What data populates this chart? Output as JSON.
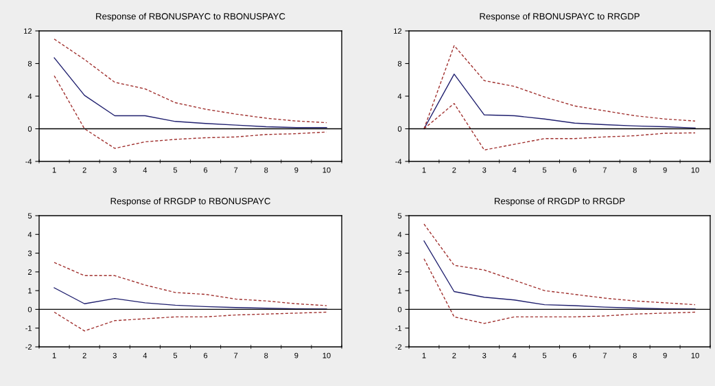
{
  "chart_data": [
    {
      "type": "line",
      "title": "Response of RBONUSPAYC to RBONUSPAYC",
      "categories": [
        "1",
        "2",
        "3",
        "4",
        "5",
        "6",
        "7",
        "8",
        "9",
        "10"
      ],
      "ylim": [
        -4,
        12
      ],
      "yticks": [
        -4,
        0,
        4,
        8,
        12
      ],
      "grid": false,
      "legend": false,
      "ref_lines": [
        {
          "axis": "y",
          "value": 0,
          "color": "#000000"
        }
      ],
      "series": [
        {
          "color": "#1f1f6e",
          "line_style": "solid",
          "values": [
            8.7,
            4.1,
            1.6,
            1.6,
            0.9,
            0.65,
            0.45,
            0.25,
            0.15,
            0.15
          ]
        },
        {
          "color": "#a0302e",
          "line_style": "dashed",
          "values": [
            11,
            8.5,
            5.7,
            4.9,
            3.2,
            2.4,
            1.8,
            1.3,
            0.95,
            0.75
          ]
        },
        {
          "color": "#a0302e",
          "line_style": "dashed",
          "values": [
            6.5,
            0,
            -2.4,
            -1.6,
            -1.3,
            -1.1,
            -1.0,
            -0.7,
            -0.6,
            -0.4
          ]
        }
      ]
    },
    {
      "type": "line",
      "title": "Response of RBONUSPAYC to RRGDP",
      "categories": [
        "1",
        "2",
        "3",
        "4",
        "5",
        "6",
        "7",
        "8",
        "9",
        "10"
      ],
      "ylim": [
        -4,
        12
      ],
      "yticks": [
        -4,
        0,
        4,
        8,
        12
      ],
      "grid": false,
      "legend": false,
      "ref_lines": [
        {
          "axis": "y",
          "value": 0,
          "color": "#000000"
        }
      ],
      "series": [
        {
          "color": "#1f1f6e",
          "line_style": "solid",
          "values": [
            0,
            6.7,
            1.7,
            1.6,
            1.2,
            0.7,
            0.5,
            0.35,
            0.25,
            0.1
          ]
        },
        {
          "color": "#a0302e",
          "line_style": "dashed",
          "values": [
            0,
            10.2,
            5.9,
            5.2,
            3.9,
            2.8,
            2.2,
            1.6,
            1.2,
            0.95
          ]
        },
        {
          "color": "#a0302e",
          "line_style": "dashed",
          "values": [
            0,
            3.1,
            -2.6,
            -1.9,
            -1.2,
            -1.2,
            -1.0,
            -0.85,
            -0.55,
            -0.5
          ]
        }
      ]
    },
    {
      "type": "line",
      "title": "Response of RRGDP to RBONUSPAYC",
      "categories": [
        "1",
        "2",
        "3",
        "4",
        "5",
        "6",
        "7",
        "8",
        "9",
        "10"
      ],
      "ylim": [
        -2,
        5
      ],
      "yticks": [
        -2,
        -1,
        0,
        1,
        2,
        3,
        4,
        5
      ],
      "grid": false,
      "legend": false,
      "ref_lines": [
        {
          "axis": "y",
          "value": 0,
          "color": "#000000"
        }
      ],
      "series": [
        {
          "color": "#1f1f6e",
          "line_style": "solid",
          "values": [
            1.15,
            0.3,
            0.58,
            0.35,
            0.22,
            0.15,
            0.1,
            0.06,
            0.03,
            0.02
          ]
        },
        {
          "color": "#a0302e",
          "line_style": "dashed",
          "values": [
            2.5,
            1.8,
            1.8,
            1.3,
            0.9,
            0.8,
            0.55,
            0.45,
            0.3,
            0.2
          ]
        },
        {
          "color": "#a0302e",
          "line_style": "dashed",
          "values": [
            -0.15,
            -1.15,
            -0.6,
            -0.5,
            -0.4,
            -0.4,
            -0.3,
            -0.25,
            -0.2,
            -0.15
          ]
        }
      ]
    },
    {
      "type": "line",
      "title": "Response of RRGDP to RRGDP",
      "categories": [
        "1",
        "2",
        "3",
        "4",
        "5",
        "6",
        "7",
        "8",
        "9",
        "10"
      ],
      "ylim": [
        -2,
        5
      ],
      "yticks": [
        -2,
        -1,
        0,
        1,
        2,
        3,
        4,
        5
      ],
      "grid": false,
      "legend": false,
      "ref_lines": [
        {
          "axis": "y",
          "value": 0,
          "color": "#000000"
        }
      ],
      "series": [
        {
          "color": "#1f1f6e",
          "line_style": "solid",
          "values": [
            3.65,
            0.95,
            0.65,
            0.5,
            0.25,
            0.2,
            0.12,
            0.07,
            0.03,
            0.02
          ]
        },
        {
          "color": "#a0302e",
          "line_style": "dashed",
          "values": [
            4.55,
            2.35,
            2.1,
            1.55,
            1.0,
            0.8,
            0.6,
            0.45,
            0.35,
            0.25
          ]
        },
        {
          "color": "#a0302e",
          "line_style": "dashed",
          "values": [
            2.7,
            -0.4,
            -0.75,
            -0.4,
            -0.4,
            -0.4,
            -0.35,
            -0.25,
            -0.2,
            -0.15
          ]
        }
      ]
    }
  ]
}
